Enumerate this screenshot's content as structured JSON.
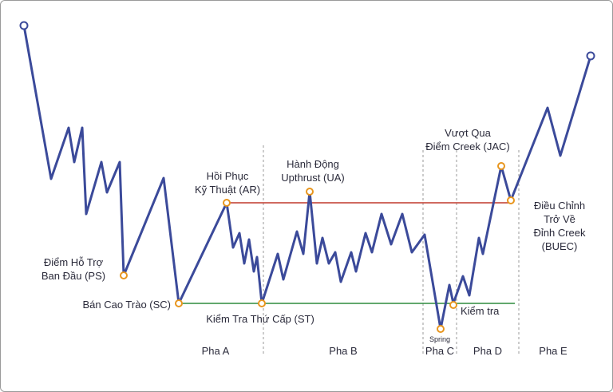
{
  "colors": {
    "price_line": "#3b4a9a",
    "resistance": "#c0392b",
    "support": "#2e8b3e",
    "marker_stroke": "#e8961e",
    "phase_divider": "#999999",
    "text": "#2a2a3a"
  },
  "labels": {
    "ps": [
      "Điểm Hỗ Trợ",
      "Ban Đầu (PS)"
    ],
    "sc": "Bán Cao Trào (SC)",
    "ar": [
      "Hồi Phục",
      "Kỹ Thuật (AR)"
    ],
    "st": "Kiểm Tra Thứ Cấp (ST)",
    "ua": [
      "Hành Động",
      "Upthrust (UA)"
    ],
    "spring": "Spring",
    "test": "Kiểm tra",
    "jac": [
      "Vượt Qua",
      "Điểm Creek (JAC)"
    ],
    "buec": [
      "Điều Chỉnh",
      "Trở Về",
      "Đỉnh Creek",
      "(BUEC)"
    ]
  },
  "phases": [
    "Pha A",
    "Pha B",
    "Pha C",
    "Pha D",
    "Pha E"
  ]
}
